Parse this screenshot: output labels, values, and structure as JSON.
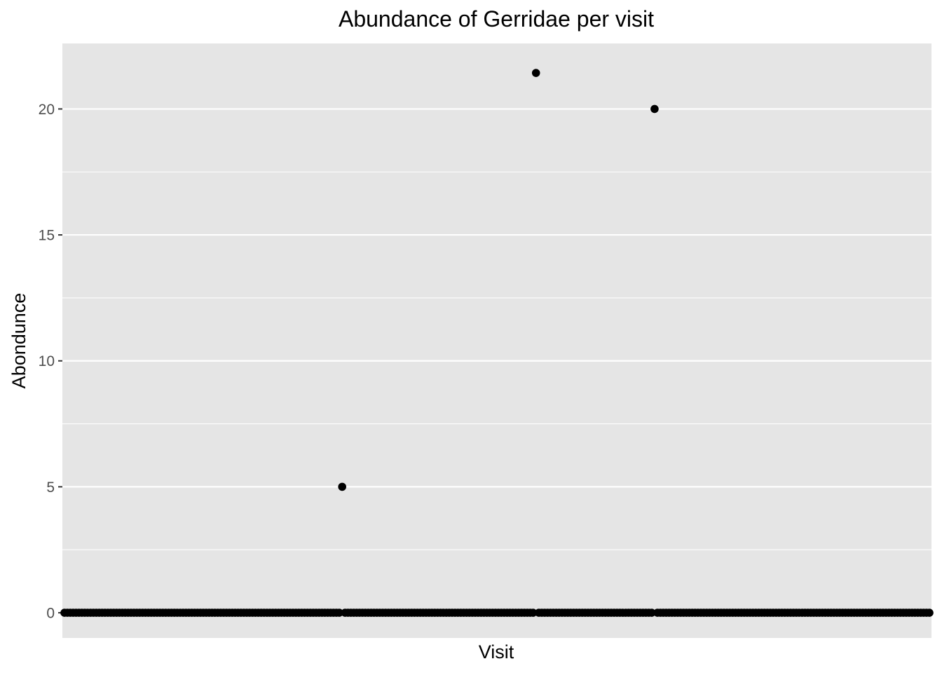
{
  "chart_data": {
    "type": "scatter",
    "title": "Abundance of Gerridae per visit",
    "xlabel": "Visit",
    "ylabel": "Abondunce",
    "ylim": [
      -1.0,
      22.6
    ],
    "y_ticks": [
      0,
      5,
      10,
      15,
      20
    ],
    "y_tick_labels": [
      "0",
      "5",
      "10",
      "15",
      "20"
    ],
    "x_tick_labels": [],
    "grid": true,
    "colors": {
      "panel": "#e5e5e5",
      "grid": "#ffffff",
      "point": "#000000",
      "tick": "#333333"
    },
    "visit_count": 300,
    "nonzero_points": [
      {
        "visit_index": 96,
        "abundance": 5
      },
      {
        "visit_index": 163,
        "abundance": 21.43
      },
      {
        "visit_index": 204,
        "abundance": 20
      }
    ],
    "baseline_value": 0
  }
}
